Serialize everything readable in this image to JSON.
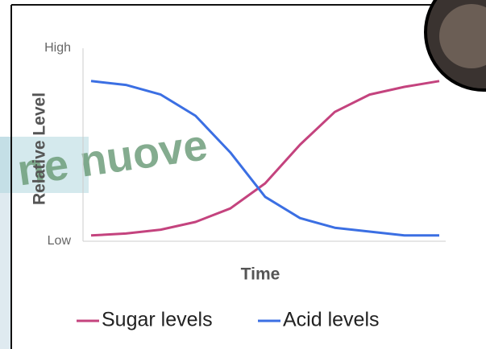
{
  "chart_data": {
    "type": "line",
    "x_label": "Time",
    "y_label": "Relative Level",
    "x": [
      0,
      1,
      2,
      3,
      4,
      5,
      6,
      7,
      8,
      9,
      10
    ],
    "xlim": [
      0,
      10
    ],
    "ylim": [
      0,
      1
    ],
    "yticks": [
      {
        "value": 0,
        "label": "Low"
      },
      {
        "value": 1,
        "label": "High"
      }
    ],
    "series": [
      {
        "name": "Sugar levels",
        "color": "#c4437e",
        "values": [
          0.03,
          0.04,
          0.06,
          0.1,
          0.17,
          0.3,
          0.5,
          0.67,
          0.76,
          0.8,
          0.83
        ]
      },
      {
        "name": "Acid levels",
        "color": "#3b6fe3",
        "values": [
          0.83,
          0.81,
          0.76,
          0.65,
          0.46,
          0.23,
          0.12,
          0.07,
          0.05,
          0.03,
          0.03
        ]
      }
    ],
    "legend": "bottom",
    "watermark": "ne nuove"
  }
}
